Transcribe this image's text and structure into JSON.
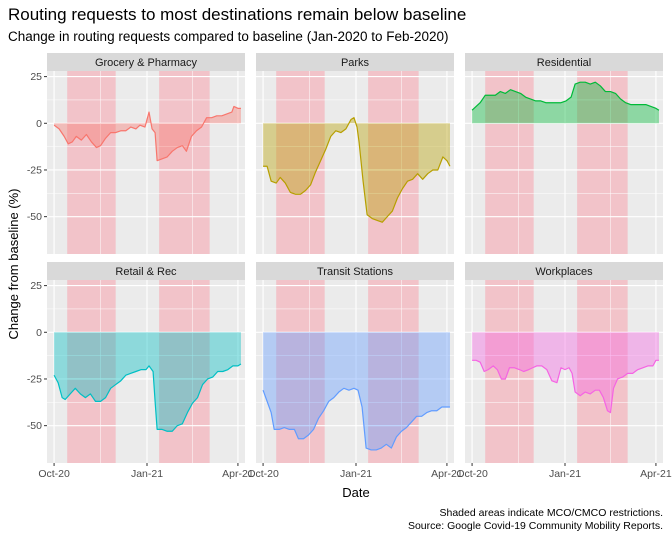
{
  "title": "Routing requests to most destinations remain below baseline",
  "subtitle": "Change in routing requests compared to baseline (Jan-2020 to Feb-2020)",
  "caption": [
    "Shaded areas indicate MCO/CMCO restrictions.",
    "Source: Google Covid-19 Community Mobility Reports."
  ],
  "chart_data": {
    "type": "area",
    "xlabel": "Date",
    "ylabel": "Change from baseline (%)",
    "x_ticks": [
      {
        "label": "Oct-20",
        "date": "2020-10-01"
      },
      {
        "label": "Jan-21",
        "date": "2021-01-01"
      },
      {
        "label": "Apr-21",
        "date": "2021-04-01"
      }
    ],
    "y_ticks": [
      25,
      0,
      -25,
      -50
    ],
    "xlim": [
      "2020-09-24",
      "2021-04-08"
    ],
    "ylim": [
      -70,
      28
    ],
    "restriction_periods": [
      {
        "start": "2020-10-14",
        "end": "2020-12-01"
      },
      {
        "start": "2021-01-13",
        "end": "2021-03-04"
      }
    ],
    "colors": {
      "panel_bg": "#ebebeb",
      "grid": "#ffffff",
      "strip_bg": "#d9d9d9",
      "restriction": "#f4b6bd"
    },
    "series": [
      {
        "name": "Grocery & Pharmacy",
        "color": "#f8766d",
        "points": [
          [
            "2020-10-01",
            -1
          ],
          [
            "2020-10-06",
            -3
          ],
          [
            "2020-10-11",
            -7
          ],
          [
            "2020-10-15",
            -11
          ],
          [
            "2020-10-19",
            -10
          ],
          [
            "2020-10-23",
            -7
          ],
          [
            "2020-10-28",
            -9
          ],
          [
            "2020-11-02",
            -6
          ],
          [
            "2020-11-07",
            -10
          ],
          [
            "2020-11-12",
            -13
          ],
          [
            "2020-11-16",
            -12
          ],
          [
            "2020-11-21",
            -8
          ],
          [
            "2020-11-26",
            -5
          ],
          [
            "2020-12-01",
            -5
          ],
          [
            "2020-12-06",
            -4
          ],
          [
            "2020-12-11",
            -4
          ],
          [
            "2020-12-16",
            -2
          ],
          [
            "2020-12-21",
            -3
          ],
          [
            "2020-12-25",
            -1
          ],
          [
            "2020-12-30",
            -2
          ],
          [
            "2021-01-03",
            6
          ],
          [
            "2021-01-06",
            -3
          ],
          [
            "2021-01-09",
            -5
          ],
          [
            "2021-01-11",
            -20
          ],
          [
            "2021-01-16",
            -19
          ],
          [
            "2021-01-21",
            -18
          ],
          [
            "2021-01-26",
            -15
          ],
          [
            "2021-01-31",
            -13
          ],
          [
            "2021-02-05",
            -12
          ],
          [
            "2021-02-09",
            -15
          ],
          [
            "2021-02-14",
            -7
          ],
          [
            "2021-02-19",
            -4
          ],
          [
            "2021-02-24",
            -2
          ],
          [
            "2021-03-01",
            3
          ],
          [
            "2021-03-06",
            3
          ],
          [
            "2021-03-11",
            4
          ],
          [
            "2021-03-16",
            4
          ],
          [
            "2021-03-21",
            5
          ],
          [
            "2021-03-26",
            6
          ],
          [
            "2021-03-28",
            9
          ],
          [
            "2021-04-01",
            8
          ],
          [
            "2021-04-04",
            8
          ]
        ]
      },
      {
        "name": "Parks",
        "color": "#b79f00",
        "points": [
          [
            "2020-10-01",
            -23
          ],
          [
            "2020-10-05",
            -23
          ],
          [
            "2020-10-09",
            -31
          ],
          [
            "2020-10-14",
            -32
          ],
          [
            "2020-10-18",
            -29
          ],
          [
            "2020-10-23",
            -32
          ],
          [
            "2020-10-28",
            -37
          ],
          [
            "2020-11-02",
            -38
          ],
          [
            "2020-11-07",
            -38
          ],
          [
            "2020-11-12",
            -36
          ],
          [
            "2020-11-17",
            -33
          ],
          [
            "2020-11-22",
            -26
          ],
          [
            "2020-11-27",
            -20
          ],
          [
            "2020-12-02",
            -14
          ],
          [
            "2020-12-07",
            -7
          ],
          [
            "2020-12-12",
            -4
          ],
          [
            "2020-12-17",
            -5
          ],
          [
            "2020-12-22",
            -3
          ],
          [
            "2020-12-27",
            2
          ],
          [
            "2020-12-30",
            3
          ],
          [
            "2021-01-02",
            -2
          ],
          [
            "2021-01-04",
            -10
          ],
          [
            "2021-01-08",
            -31
          ],
          [
            "2021-01-12",
            -49
          ],
          [
            "2021-01-17",
            -51
          ],
          [
            "2021-01-22",
            -52
          ],
          [
            "2021-01-27",
            -53
          ],
          [
            "2021-02-01",
            -50
          ],
          [
            "2021-02-06",
            -47
          ],
          [
            "2021-02-11",
            -40
          ],
          [
            "2021-02-16",
            -35
          ],
          [
            "2021-02-21",
            -31
          ],
          [
            "2021-02-26",
            -30
          ],
          [
            "2021-03-03",
            -27
          ],
          [
            "2021-03-08",
            -30
          ],
          [
            "2021-03-13",
            -27
          ],
          [
            "2021-03-18",
            -25
          ],
          [
            "2021-03-23",
            -25
          ],
          [
            "2021-03-28",
            -18
          ],
          [
            "2021-04-01",
            -20
          ],
          [
            "2021-04-04",
            -23
          ]
        ]
      },
      {
        "name": "Residential",
        "color": "#00ba38",
        "points": [
          [
            "2020-10-01",
            7
          ],
          [
            "2020-10-05",
            9
          ],
          [
            "2020-10-09",
            11
          ],
          [
            "2020-10-14",
            15
          ],
          [
            "2020-10-19",
            15
          ],
          [
            "2020-10-24",
            15
          ],
          [
            "2020-10-29",
            17
          ],
          [
            "2020-11-03",
            16
          ],
          [
            "2020-11-08",
            18
          ],
          [
            "2020-11-13",
            17
          ],
          [
            "2020-11-18",
            16
          ],
          [
            "2020-11-23",
            14
          ],
          [
            "2020-11-28",
            13
          ],
          [
            "2020-12-03",
            12
          ],
          [
            "2020-12-08",
            12
          ],
          [
            "2020-12-13",
            11
          ],
          [
            "2020-12-18",
            11
          ],
          [
            "2020-12-23",
            11
          ],
          [
            "2020-12-28",
            11
          ],
          [
            "2021-01-02",
            12
          ],
          [
            "2021-01-07",
            14
          ],
          [
            "2021-01-11",
            21
          ],
          [
            "2021-01-16",
            22
          ],
          [
            "2021-01-21",
            22
          ],
          [
            "2021-01-26",
            21
          ],
          [
            "2021-01-31",
            22
          ],
          [
            "2021-02-05",
            20
          ],
          [
            "2021-02-10",
            17
          ],
          [
            "2021-02-15",
            17
          ],
          [
            "2021-02-20",
            16
          ],
          [
            "2021-02-25",
            13
          ],
          [
            "2021-03-02",
            11
          ],
          [
            "2021-03-07",
            10
          ],
          [
            "2021-03-12",
            10
          ],
          [
            "2021-03-17",
            10
          ],
          [
            "2021-03-22",
            10
          ],
          [
            "2021-03-27",
            9
          ],
          [
            "2021-04-01",
            8
          ],
          [
            "2021-04-04",
            7
          ]
        ]
      },
      {
        "name": "Retail & Rec",
        "color": "#00bfc4",
        "points": [
          [
            "2020-10-01",
            -23
          ],
          [
            "2020-10-05",
            -27
          ],
          [
            "2020-10-09",
            -35
          ],
          [
            "2020-10-12",
            -36
          ],
          [
            "2020-10-17",
            -33
          ],
          [
            "2020-10-22",
            -30
          ],
          [
            "2020-10-27",
            -33
          ],
          [
            "2020-11-01",
            -35
          ],
          [
            "2020-11-06",
            -33
          ],
          [
            "2020-11-11",
            -37
          ],
          [
            "2020-11-16",
            -37
          ],
          [
            "2020-11-21",
            -35
          ],
          [
            "2020-11-26",
            -30
          ],
          [
            "2020-12-01",
            -28
          ],
          [
            "2020-12-06",
            -26
          ],
          [
            "2020-12-11",
            -23
          ],
          [
            "2020-12-16",
            -22
          ],
          [
            "2020-12-21",
            -21
          ],
          [
            "2020-12-26",
            -20
          ],
          [
            "2020-12-31",
            -20
          ],
          [
            "2021-01-03",
            -18
          ],
          [
            "2021-01-07",
            -21
          ],
          [
            "2021-01-09",
            -37
          ],
          [
            "2021-01-11",
            -52
          ],
          [
            "2021-01-16",
            -52
          ],
          [
            "2021-01-21",
            -53
          ],
          [
            "2021-01-26",
            -53
          ],
          [
            "2021-01-31",
            -50
          ],
          [
            "2021-02-05",
            -49
          ],
          [
            "2021-02-10",
            -43
          ],
          [
            "2021-02-15",
            -38
          ],
          [
            "2021-02-20",
            -35
          ],
          [
            "2021-02-25",
            -28
          ],
          [
            "2021-03-02",
            -25
          ],
          [
            "2021-03-07",
            -24
          ],
          [
            "2021-03-12",
            -21
          ],
          [
            "2021-03-17",
            -21
          ],
          [
            "2021-03-22",
            -20
          ],
          [
            "2021-03-27",
            -18
          ],
          [
            "2021-04-01",
            -18
          ],
          [
            "2021-04-04",
            -17
          ]
        ]
      },
      {
        "name": "Transit Stations",
        "color": "#619cff",
        "points": [
          [
            "2020-10-01",
            -31
          ],
          [
            "2020-10-05",
            -37
          ],
          [
            "2020-10-09",
            -43
          ],
          [
            "2020-10-12",
            -52
          ],
          [
            "2020-10-17",
            -52
          ],
          [
            "2020-10-22",
            -51
          ],
          [
            "2020-10-27",
            -52
          ],
          [
            "2020-11-01",
            -52
          ],
          [
            "2020-11-05",
            -57
          ],
          [
            "2020-11-10",
            -57
          ],
          [
            "2020-11-15",
            -55
          ],
          [
            "2020-11-20",
            -52
          ],
          [
            "2020-11-25",
            -46
          ],
          [
            "2020-11-30",
            -42
          ],
          [
            "2020-12-05",
            -37
          ],
          [
            "2020-12-10",
            -35
          ],
          [
            "2020-12-15",
            -32
          ],
          [
            "2020-12-20",
            -30
          ],
          [
            "2020-12-25",
            -31
          ],
          [
            "2020-12-30",
            -30
          ],
          [
            "2021-01-03",
            -31
          ],
          [
            "2021-01-07",
            -40
          ],
          [
            "2021-01-11",
            -62
          ],
          [
            "2021-01-16",
            -63
          ],
          [
            "2021-01-21",
            -63
          ],
          [
            "2021-01-26",
            -62
          ],
          [
            "2021-01-31",
            -60
          ],
          [
            "2021-02-05",
            -62
          ],
          [
            "2021-02-10",
            -56
          ],
          [
            "2021-02-15",
            -53
          ],
          [
            "2021-02-20",
            -51
          ],
          [
            "2021-02-25",
            -48
          ],
          [
            "2021-03-02",
            -45
          ],
          [
            "2021-03-07",
            -45
          ],
          [
            "2021-03-12",
            -43
          ],
          [
            "2021-03-17",
            -42
          ],
          [
            "2021-03-22",
            -42
          ],
          [
            "2021-03-27",
            -40
          ],
          [
            "2021-04-01",
            -40
          ],
          [
            "2021-04-04",
            -40
          ]
        ]
      },
      {
        "name": "Workplaces",
        "color": "#f564e3",
        "points": [
          [
            "2020-10-01",
            -15
          ],
          [
            "2020-10-05",
            -15
          ],
          [
            "2020-10-09",
            -16
          ],
          [
            "2020-10-13",
            -21
          ],
          [
            "2020-10-17",
            -20
          ],
          [
            "2020-10-22",
            -18
          ],
          [
            "2020-10-26",
            -20
          ],
          [
            "2020-10-30",
            -25
          ],
          [
            "2020-11-03",
            -25
          ],
          [
            "2020-11-07",
            -19
          ],
          [
            "2020-11-12",
            -19
          ],
          [
            "2020-11-17",
            -20
          ],
          [
            "2020-11-21",
            -21
          ],
          [
            "2020-11-26",
            -20
          ],
          [
            "2020-11-30",
            -19
          ],
          [
            "2020-12-04",
            -18
          ],
          [
            "2020-12-09",
            -18
          ],
          [
            "2020-12-14",
            -20
          ],
          [
            "2020-12-19",
            -26
          ],
          [
            "2020-12-24",
            -27
          ],
          [
            "2020-12-28",
            -19
          ],
          [
            "2021-01-01",
            -20
          ],
          [
            "2021-01-05",
            -19
          ],
          [
            "2021-01-08",
            -22
          ],
          [
            "2021-01-11",
            -32
          ],
          [
            "2021-01-16",
            -34
          ],
          [
            "2021-01-21",
            -32
          ],
          [
            "2021-01-26",
            -33
          ],
          [
            "2021-01-31",
            -31
          ],
          [
            "2021-02-04",
            -31
          ],
          [
            "2021-02-08",
            -35
          ],
          [
            "2021-02-12",
            -42
          ],
          [
            "2021-02-15",
            -43
          ],
          [
            "2021-02-18",
            -30
          ],
          [
            "2021-02-22",
            -25
          ],
          [
            "2021-02-27",
            -24
          ],
          [
            "2021-03-04",
            -22
          ],
          [
            "2021-03-09",
            -22
          ],
          [
            "2021-03-14",
            -20
          ],
          [
            "2021-03-19",
            -19
          ],
          [
            "2021-03-24",
            -18
          ],
          [
            "2021-03-29",
            -18
          ],
          [
            "2021-04-01",
            -15
          ],
          [
            "2021-04-04",
            -15
          ]
        ]
      }
    ]
  }
}
